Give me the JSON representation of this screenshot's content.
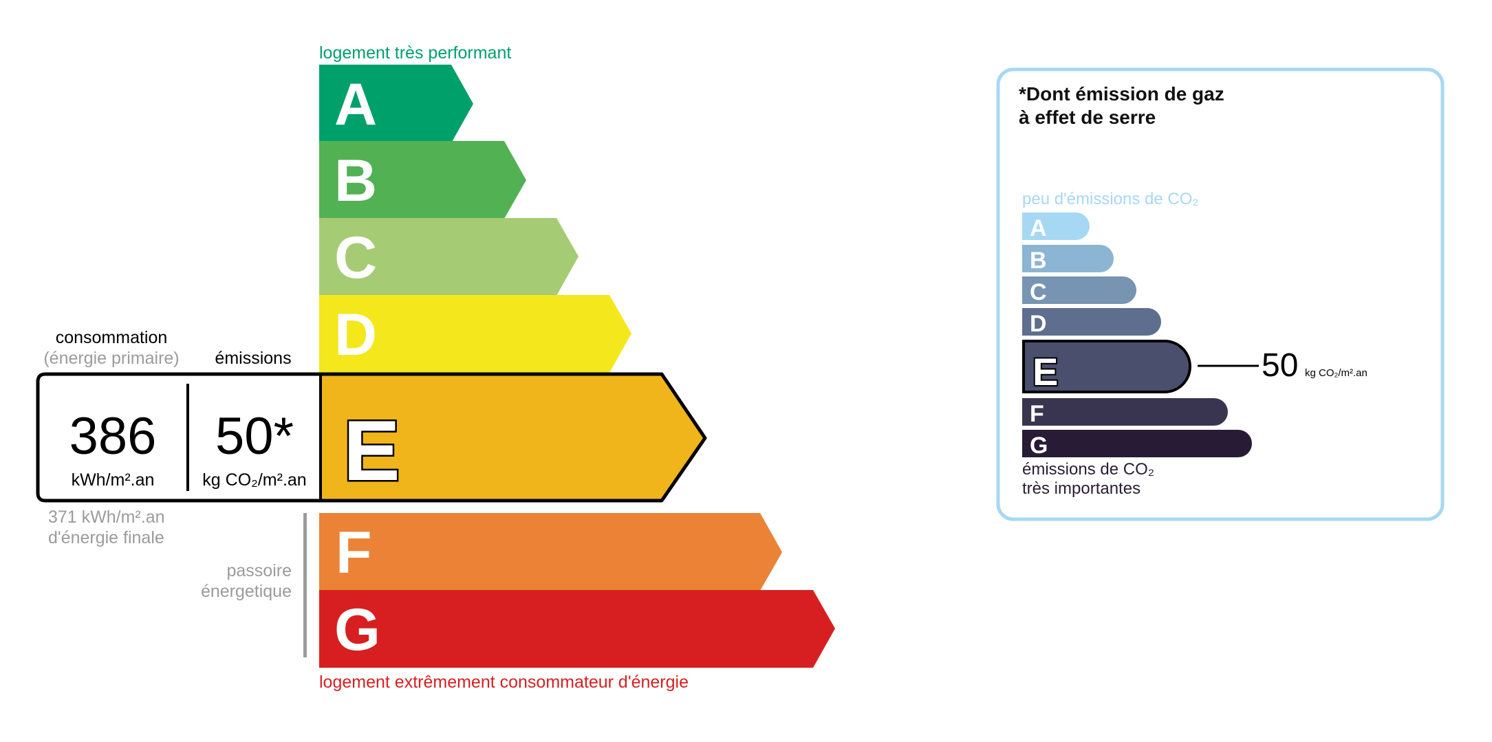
{
  "energy": {
    "top_label": "logement très performant",
    "bottom_label": "logement extrêmement consommateur d'énergie",
    "top_color": "#00a06b",
    "bottom_color": "#d71f21",
    "classes": [
      {
        "letter": "A",
        "color": "#00a06b"
      },
      {
        "letter": "B",
        "color": "#52b153"
      },
      {
        "letter": "C",
        "color": "#a5cc74"
      },
      {
        "letter": "D",
        "color": "#f4e71c"
      },
      {
        "letter": "E",
        "color": "#f0b51a"
      },
      {
        "letter": "F",
        "color": "#eb8235"
      },
      {
        "letter": "G",
        "color": "#d71f21"
      }
    ],
    "current_class": "E",
    "consumption_label": "consommation",
    "consumption_sublabel": "(énergie primaire)",
    "emissions_label": "émissions",
    "consumption_value": "386",
    "consumption_unit": "kWh/m².an",
    "emissions_value": "50*",
    "emissions_unit": "kg CO₂/m².an",
    "final_energy_value": "371 kWh/m².an",
    "final_energy_label": "d'énergie finale",
    "passoire_line1": "passoire",
    "passoire_line2": "énergetique"
  },
  "ghg": {
    "title_line1": "*Dont émission de gaz",
    "title_line2": "à effet de serre",
    "top_label": "peu d'émissions de CO₂",
    "bottom_label_line1": "émissions de CO₂",
    "bottom_label_line2": "très importantes",
    "border_color": "#a6d8f4",
    "classes": [
      {
        "letter": "A",
        "color": "#a6d8f4"
      },
      {
        "letter": "B",
        "color": "#8cb4d3"
      },
      {
        "letter": "C",
        "color": "#7794b2"
      },
      {
        "letter": "D",
        "color": "#5e6e8f"
      },
      {
        "letter": "E",
        "color": "#4b4f6e"
      },
      {
        "letter": "F",
        "color": "#393551"
      },
      {
        "letter": "G",
        "color": "#281b35"
      }
    ],
    "current_class": "E",
    "value": "50",
    "unit": "kg CO₂/m².an"
  }
}
